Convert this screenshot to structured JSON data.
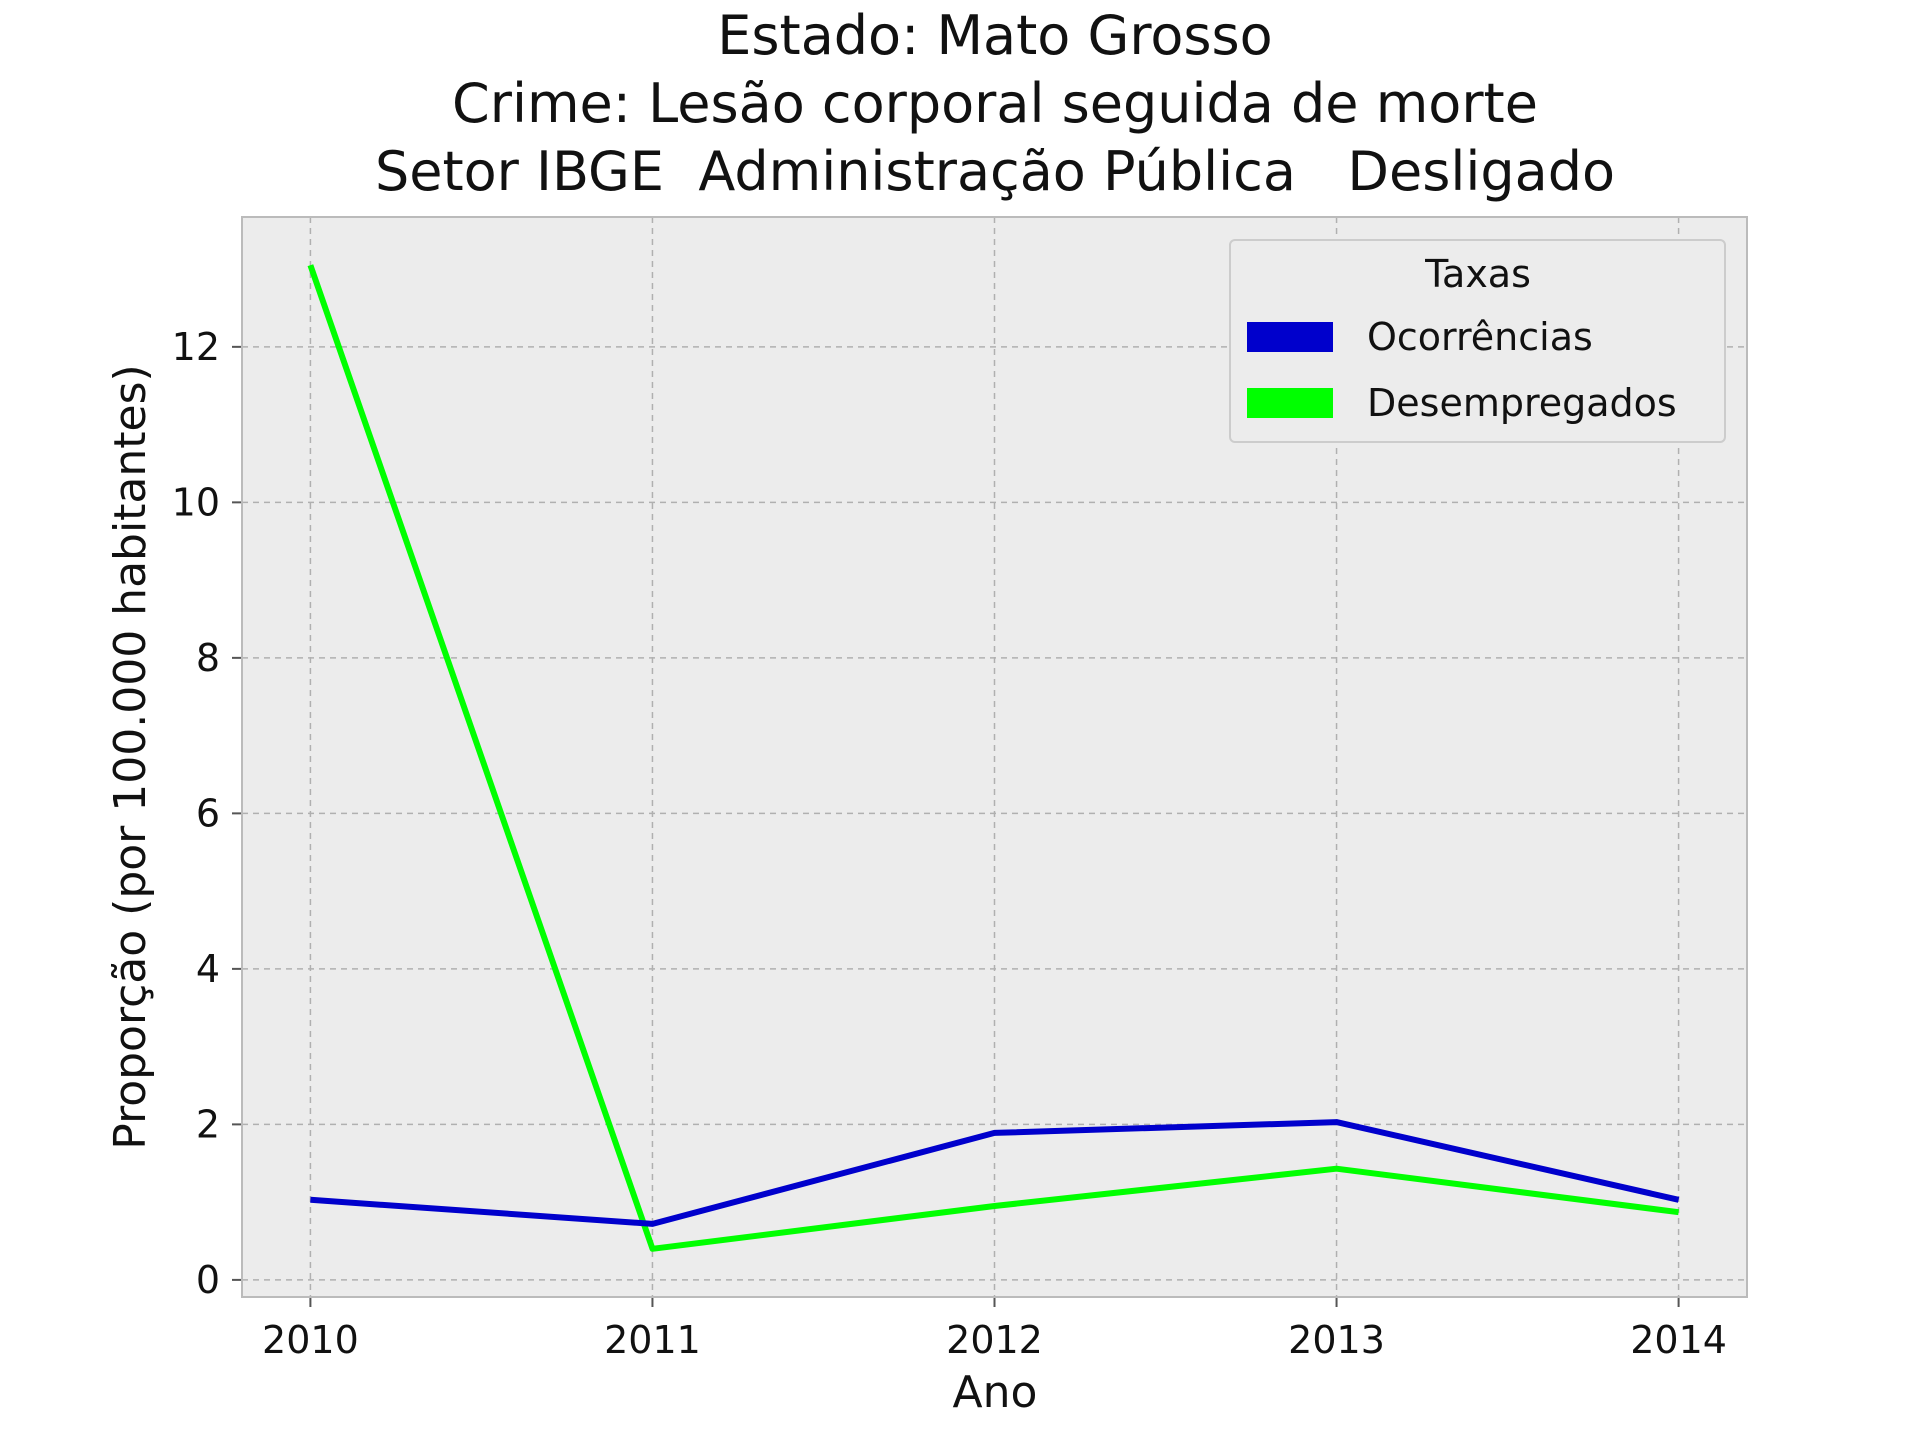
{
  "chart_data": {
    "type": "line",
    "title_lines": [
      "Estado: Mato Grosso",
      "Crime: Lesão corporal seguida de morte",
      "Setor IBGE  Administração Pública   Desligado"
    ],
    "xlabel": "Ano",
    "ylabel": "Proporção (por 100.000 habitantes)",
    "x": [
      2010,
      2011,
      2012,
      2013,
      2014
    ],
    "x_tick_labels": [
      "2010",
      "2011",
      "2012",
      "2013",
      "2014"
    ],
    "y_ticks": [
      0,
      2,
      4,
      6,
      8,
      10,
      12
    ],
    "y_tick_labels": [
      "0",
      "2",
      "4",
      "6",
      "8",
      "10",
      "12"
    ],
    "xlim": [
      2009.8,
      2014.2
    ],
    "ylim": [
      -0.22,
      13.67
    ],
    "grid": true,
    "legend": {
      "title": "Taxas",
      "placement": "top-right"
    },
    "series": [
      {
        "name": "Ocorrências",
        "color": "#0000cc",
        "values": [
          1.03,
          0.72,
          1.89,
          2.03,
          1.03
        ]
      },
      {
        "name": "Desempregados",
        "color": "#00ff00",
        "values": [
          13.05,
          0.4,
          0.95,
          1.43,
          0.87
        ]
      }
    ],
    "colors": {
      "plot_background": "#ececec",
      "frame": "#bbbbbb",
      "grid": "#b0b0b0"
    }
  }
}
